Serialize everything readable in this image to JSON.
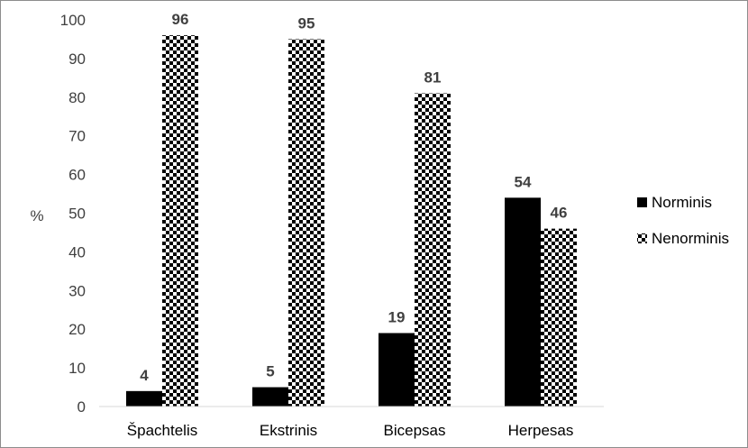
{
  "chart_data": {
    "type": "bar",
    "title": "",
    "xlabel": "",
    "ylabel": "%",
    "ylim": [
      0,
      100
    ],
    "yticks": [
      0,
      10,
      20,
      30,
      40,
      50,
      60,
      70,
      80,
      90,
      100
    ],
    "categories": [
      "Špachtelis",
      "Ekstrinis",
      "Bicepsas",
      "Herpesas"
    ],
    "series": [
      {
        "name": "Norminis",
        "values": [
          4,
          5,
          19,
          54
        ],
        "fill": "solid",
        "color": "#000000"
      },
      {
        "name": "Nenorminis",
        "values": [
          96,
          95,
          81,
          46
        ],
        "fill": "checkerboard",
        "color": "#000000"
      }
    ],
    "data_labels": true,
    "grid": false,
    "legend": "right"
  }
}
